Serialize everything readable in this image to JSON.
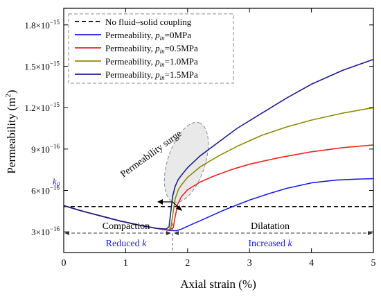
{
  "chart_data": {
    "type": "line",
    "xlabel": "Axial strain (%)",
    "ylabel": "Permeability (m",
    "ylabel_sup": "2",
    "ylabel_close": ")",
    "xlim": [
      0,
      5
    ],
    "ylim": [
      1.5e-16,
      1.92e-15
    ],
    "x_ticks": [
      0,
      1,
      2,
      3,
      4,
      5
    ],
    "y_ticks": [
      {
        "value": 3e-16,
        "mantissa": "3×10",
        "exp": "−16"
      },
      {
        "value": 6e-16,
        "mantissa": "6×10",
        "exp": "−16"
      },
      {
        "value": 9e-16,
        "mantissa": "9×10",
        "exp": "−16"
      },
      {
        "value": 1.2e-15,
        "mantissa": "1.2×10",
        "exp": "−15"
      },
      {
        "value": 1.5e-15,
        "mantissa": "1.5×10",
        "exp": "−15"
      },
      {
        "value": 1.8e-15,
        "mantissa": "1.8×10",
        "exp": "−15"
      }
    ],
    "k0": {
      "value": 4.83e-16,
      "label": "k",
      "sub": "0"
    },
    "legend_position": "top-left",
    "series": [
      {
        "name_pre": "No fluid–solid coupling",
        "name_sub": "",
        "name_post": "",
        "color": "#000000",
        "dash": true,
        "x": [
          0,
          5
        ],
        "y": [
          4.83e-16,
          4.83e-16
        ]
      },
      {
        "name_pre": "Permeability, ",
        "name_sub": "in",
        "name_post": "=0MPa",
        "color": "#1a1ae6",
        "dash": false,
        "x": [
          0,
          0.3,
          0.6,
          0.9,
          1.2,
          1.5,
          1.7,
          1.82,
          1.9,
          2.0,
          2.1,
          2.2,
          2.4,
          2.6,
          2.8,
          3.0,
          3.3,
          3.6,
          4.0,
          4.4,
          4.8,
          5.0
        ],
        "y": [
          4.9e-16,
          4.5e-16,
          4.15e-16,
          3.8e-16,
          3.5e-16,
          3.25e-16,
          3.1e-16,
          3.08e-16,
          3.2e-16,
          3.4e-16,
          3.6e-16,
          3.8e-16,
          4.2e-16,
          4.6e-16,
          4.95e-16,
          5.3e-16,
          5.75e-16,
          6.15e-16,
          6.55e-16,
          6.75e-16,
          6.83e-16,
          6.85e-16
        ]
      },
      {
        "name_pre": "Permeability, ",
        "name_sub": "in",
        "name_post": "=0.5MPa",
        "color": "#ee2222",
        "dash": false,
        "x": [
          0,
          0.3,
          0.6,
          0.9,
          1.2,
          1.5,
          1.7,
          1.77,
          1.8,
          1.84,
          1.9,
          2.0,
          2.2,
          2.4,
          2.7,
          3.0,
          3.5,
          4.0,
          4.5,
          5.0
        ],
        "y": [
          4.9e-16,
          4.5e-16,
          4.15e-16,
          3.8e-16,
          3.5e-16,
          3.25e-16,
          3.12e-16,
          3.3e-16,
          4.1e-16,
          5e-16,
          5.55e-16,
          6.05e-16,
          6.6e-16,
          7e-16,
          7.5e-16,
          7.9e-16,
          8.4e-16,
          8.8e-16,
          9.1e-16,
          9.3e-16
        ]
      },
      {
        "name_pre": "Permeability, ",
        "name_sub": "in",
        "name_post": "=1.0MPa",
        "color": "#8a8a00",
        "dash": false,
        "x": [
          0,
          0.3,
          0.6,
          0.9,
          1.2,
          1.5,
          1.7,
          1.73,
          1.76,
          1.8,
          1.85,
          1.9,
          2.0,
          2.2,
          2.5,
          2.8,
          3.2,
          3.6,
          4.0,
          4.5,
          5.0
        ],
        "y": [
          4.9e-16,
          4.5e-16,
          4.15e-16,
          3.8e-16,
          3.5e-16,
          3.25e-16,
          3.15e-16,
          3.3e-16,
          4.2e-16,
          5.4e-16,
          6.05e-16,
          6.4e-16,
          6.95e-16,
          7.7e-16,
          8.5e-16,
          9.2e-16,
          1e-15,
          1.06e-15,
          1.11e-15,
          1.16e-15,
          1.2e-15
        ]
      },
      {
        "name_pre": "Permeability, ",
        "name_sub": "in",
        "name_post": "=1.5MPa",
        "color": "#1c1c8c",
        "dash": false,
        "x": [
          0,
          0.3,
          0.6,
          0.9,
          1.2,
          1.5,
          1.65,
          1.7,
          1.73,
          1.76,
          1.8,
          1.85,
          1.9,
          2.0,
          2.2,
          2.5,
          2.8,
          3.2,
          3.6,
          4.0,
          4.5,
          5.0
        ],
        "y": [
          4.9e-16,
          4.5e-16,
          4.15e-16,
          3.8e-16,
          3.5e-16,
          3.25e-16,
          3.2e-16,
          3.35e-16,
          4.5e-16,
          5.6e-16,
          6.3e-16,
          6.8e-16,
          7.1e-16,
          7.65e-16,
          8.5e-16,
          9.5e-16,
          1.05e-15,
          1.16e-15,
          1.27e-15,
          1.37e-15,
          1.47e-15,
          1.55e-15
        ]
      }
    ],
    "annotations": {
      "surge": "Permeability surge",
      "compaction": "Compaction",
      "reduced_pre": "Reduced ",
      "reduced_k": "k",
      "dilatation": "Dilatation",
      "increased_pre": "Increased ",
      "increased_k": "k",
      "divider_x": 1.75,
      "highlight_color": "#1a1ae6"
    }
  }
}
